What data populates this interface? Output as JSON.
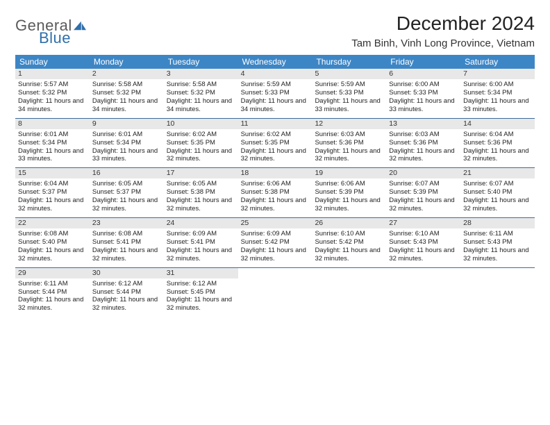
{
  "brand": {
    "general": "General",
    "blue": "Blue"
  },
  "title": "December 2024",
  "location": "Tam Binh, Vinh Long Province, Vietnam",
  "colors": {
    "header_bg": "#3d86c6",
    "header_text": "#ffffff",
    "daynum_bg": "#e8e8e8",
    "week_border": "#3d6a9a",
    "logo_gray": "#5a5a5a",
    "logo_blue": "#2f6fab"
  },
  "weekdays": [
    "Sunday",
    "Monday",
    "Tuesday",
    "Wednesday",
    "Thursday",
    "Friday",
    "Saturday"
  ],
  "first_weekday_index": 0,
  "days": [
    {
      "n": 1,
      "sunrise": "5:57 AM",
      "sunset": "5:32 PM",
      "daylight": "11 hours and 34 minutes."
    },
    {
      "n": 2,
      "sunrise": "5:58 AM",
      "sunset": "5:32 PM",
      "daylight": "11 hours and 34 minutes."
    },
    {
      "n": 3,
      "sunrise": "5:58 AM",
      "sunset": "5:32 PM",
      "daylight": "11 hours and 34 minutes."
    },
    {
      "n": 4,
      "sunrise": "5:59 AM",
      "sunset": "5:33 PM",
      "daylight": "11 hours and 34 minutes."
    },
    {
      "n": 5,
      "sunrise": "5:59 AM",
      "sunset": "5:33 PM",
      "daylight": "11 hours and 33 minutes."
    },
    {
      "n": 6,
      "sunrise": "6:00 AM",
      "sunset": "5:33 PM",
      "daylight": "11 hours and 33 minutes."
    },
    {
      "n": 7,
      "sunrise": "6:00 AM",
      "sunset": "5:34 PM",
      "daylight": "11 hours and 33 minutes."
    },
    {
      "n": 8,
      "sunrise": "6:01 AM",
      "sunset": "5:34 PM",
      "daylight": "11 hours and 33 minutes."
    },
    {
      "n": 9,
      "sunrise": "6:01 AM",
      "sunset": "5:34 PM",
      "daylight": "11 hours and 33 minutes."
    },
    {
      "n": 10,
      "sunrise": "6:02 AM",
      "sunset": "5:35 PM",
      "daylight": "11 hours and 32 minutes."
    },
    {
      "n": 11,
      "sunrise": "6:02 AM",
      "sunset": "5:35 PM",
      "daylight": "11 hours and 32 minutes."
    },
    {
      "n": 12,
      "sunrise": "6:03 AM",
      "sunset": "5:36 PM",
      "daylight": "11 hours and 32 minutes."
    },
    {
      "n": 13,
      "sunrise": "6:03 AM",
      "sunset": "5:36 PM",
      "daylight": "11 hours and 32 minutes."
    },
    {
      "n": 14,
      "sunrise": "6:04 AM",
      "sunset": "5:36 PM",
      "daylight": "11 hours and 32 minutes."
    },
    {
      "n": 15,
      "sunrise": "6:04 AM",
      "sunset": "5:37 PM",
      "daylight": "11 hours and 32 minutes."
    },
    {
      "n": 16,
      "sunrise": "6:05 AM",
      "sunset": "5:37 PM",
      "daylight": "11 hours and 32 minutes."
    },
    {
      "n": 17,
      "sunrise": "6:05 AM",
      "sunset": "5:38 PM",
      "daylight": "11 hours and 32 minutes."
    },
    {
      "n": 18,
      "sunrise": "6:06 AM",
      "sunset": "5:38 PM",
      "daylight": "11 hours and 32 minutes."
    },
    {
      "n": 19,
      "sunrise": "6:06 AM",
      "sunset": "5:39 PM",
      "daylight": "11 hours and 32 minutes."
    },
    {
      "n": 20,
      "sunrise": "6:07 AM",
      "sunset": "5:39 PM",
      "daylight": "11 hours and 32 minutes."
    },
    {
      "n": 21,
      "sunrise": "6:07 AM",
      "sunset": "5:40 PM",
      "daylight": "11 hours and 32 minutes."
    },
    {
      "n": 22,
      "sunrise": "6:08 AM",
      "sunset": "5:40 PM",
      "daylight": "11 hours and 32 minutes."
    },
    {
      "n": 23,
      "sunrise": "6:08 AM",
      "sunset": "5:41 PM",
      "daylight": "11 hours and 32 minutes."
    },
    {
      "n": 24,
      "sunrise": "6:09 AM",
      "sunset": "5:41 PM",
      "daylight": "11 hours and 32 minutes."
    },
    {
      "n": 25,
      "sunrise": "6:09 AM",
      "sunset": "5:42 PM",
      "daylight": "11 hours and 32 minutes."
    },
    {
      "n": 26,
      "sunrise": "6:10 AM",
      "sunset": "5:42 PM",
      "daylight": "11 hours and 32 minutes."
    },
    {
      "n": 27,
      "sunrise": "6:10 AM",
      "sunset": "5:43 PM",
      "daylight": "11 hours and 32 minutes."
    },
    {
      "n": 28,
      "sunrise": "6:11 AM",
      "sunset": "5:43 PM",
      "daylight": "11 hours and 32 minutes."
    },
    {
      "n": 29,
      "sunrise": "6:11 AM",
      "sunset": "5:44 PM",
      "daylight": "11 hours and 32 minutes."
    },
    {
      "n": 30,
      "sunrise": "6:12 AM",
      "sunset": "5:44 PM",
      "daylight": "11 hours and 32 minutes."
    },
    {
      "n": 31,
      "sunrise": "6:12 AM",
      "sunset": "5:45 PM",
      "daylight": "11 hours and 32 minutes."
    }
  ],
  "labels": {
    "sunrise_prefix": "Sunrise: ",
    "sunset_prefix": "Sunset: ",
    "daylight_prefix": "Daylight: "
  }
}
